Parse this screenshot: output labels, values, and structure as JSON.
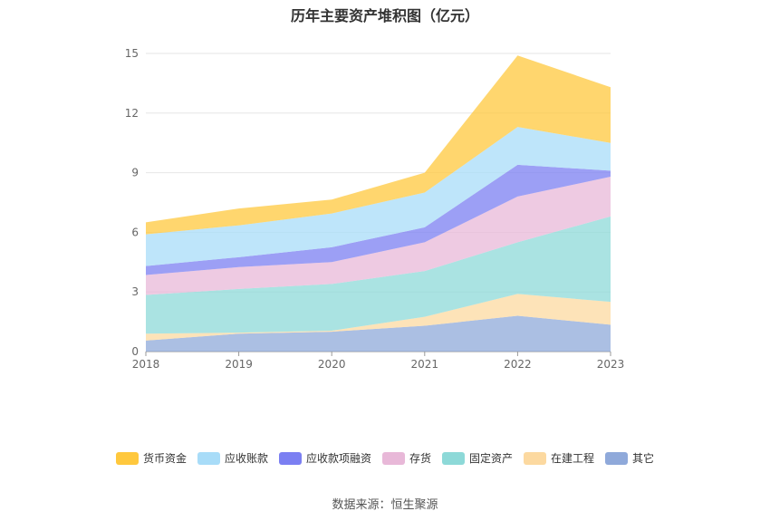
{
  "title": "历年主要资产堆积图（亿元）",
  "source": "数据来源：恒生聚源",
  "chart_data": {
    "type": "area",
    "stacked": true,
    "title": "历年主要资产堆积图（亿元）",
    "x": [
      "2018",
      "2019",
      "2020",
      "2021",
      "2022",
      "2023"
    ],
    "ylim": [
      0,
      15
    ],
    "yticks": [
      0,
      3,
      6,
      9,
      12,
      15
    ],
    "grid": true,
    "legend_position": "bottom",
    "series": [
      {
        "name": "其它",
        "color": "#8fa9da",
        "values": [
          0.55,
          0.9,
          1.0,
          1.3,
          1.8,
          1.35
        ]
      },
      {
        "name": "在建工程",
        "color": "#fcd9a0",
        "values": [
          0.35,
          0.05,
          0.05,
          0.45,
          1.1,
          1.15
        ]
      },
      {
        "name": "固定资产",
        "color": "#8dd9d8",
        "values": [
          1.95,
          2.2,
          2.35,
          2.3,
          2.6,
          4.3
        ]
      },
      {
        "name": "存货",
        "color": "#e8b8d8",
        "values": [
          1.0,
          1.1,
          1.1,
          1.45,
          2.3,
          2.0
        ]
      },
      {
        "name": "应收款项融资",
        "color": "#7b7ff2",
        "values": [
          0.45,
          0.5,
          0.75,
          0.75,
          1.6,
          0.3
        ]
      },
      {
        "name": "应收账款",
        "color": "#a8dcf8",
        "values": [
          1.6,
          1.6,
          1.7,
          1.75,
          1.9,
          1.4
        ]
      },
      {
        "name": "货币资金",
        "color": "#ffc83d",
        "values": [
          0.6,
          0.85,
          0.7,
          1.0,
          3.6,
          2.8
        ]
      }
    ]
  }
}
